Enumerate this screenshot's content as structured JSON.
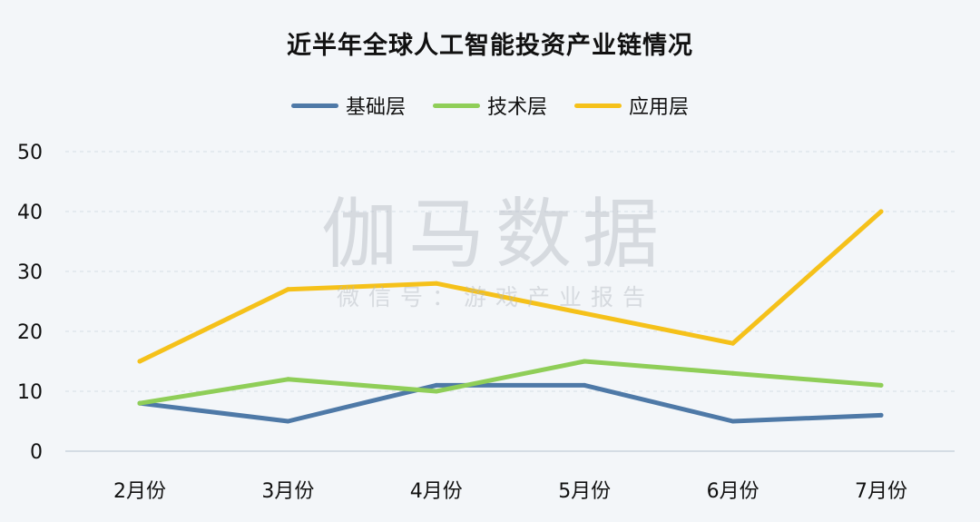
{
  "title": "近半年全球人工智能投资产业链情况",
  "watermark": {
    "main": "伽马数据",
    "sub": "微信号：游戏产业报告"
  },
  "chart_data": {
    "type": "line",
    "title": "近半年全球人工智能投资产业链情况",
    "categories": [
      "2月份",
      "3月份",
      "4月份",
      "5月份",
      "6月份",
      "7月份"
    ],
    "ylim": [
      0,
      50
    ],
    "yticks": [
      0,
      10,
      20,
      30,
      40,
      50
    ],
    "grid": true,
    "legend_position": "top",
    "series": [
      {
        "name": "基础层",
        "color": "#4e79a7",
        "values": [
          8,
          5,
          11,
          11,
          5,
          6
        ]
      },
      {
        "name": "技术层",
        "color": "#8fce58",
        "values": [
          8,
          12,
          10,
          15,
          13,
          11
        ]
      },
      {
        "name": "应用层",
        "color": "#f5c11a",
        "values": [
          15,
          27,
          28,
          23,
          18,
          40
        ]
      }
    ]
  }
}
